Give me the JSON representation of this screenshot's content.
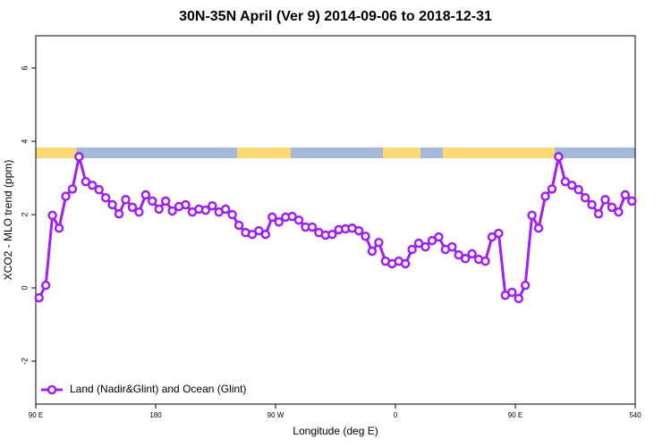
{
  "chart_data": {
    "type": "line",
    "title": "30N-35N April (Ver 9)   2014-09-06 to 2018-12-31",
    "x_label": "Longitude (deg E)",
    "y_label": "XCO2 - MLO trend (ppm)",
    "xlim": [
      90,
      540
    ],
    "xticks": [
      {
        "value": 90,
        "label": "90 E"
      },
      180,
      {
        "value": 270,
        "label": "90 W"
      },
      {
        "value": 360,
        "label": "0"
      },
      {
        "value": 450,
        "label": "90 E"
      },
      540
    ],
    "ylim": [
      -3.17,
      6.88
    ],
    "yticks": [
      -2,
      0,
      2,
      4,
      6
    ],
    "legend": "bottom-left",
    "x": [
      92.5,
      97.5,
      102.5,
      107.5,
      112.5,
      117.5,
      122.5,
      127.5,
      132.5,
      137.5,
      142.5,
      147.5,
      152.5,
      157.5,
      162.5,
      167.5,
      172.5,
      177.5,
      182.5,
      187.5,
      192.5,
      197.5,
      202.5,
      207.5,
      212.5,
      217.5,
      222.5,
      227.5,
      232.5,
      237.5,
      242.5,
      247.5,
      252.5,
      257.5,
      262.5,
      267.5,
      272.5,
      277.5,
      282.5,
      287.5,
      292.5,
      297.5,
      302.5,
      307.5,
      312.5,
      317.5,
      322.5,
      327.5,
      332.5,
      337.5,
      342.5,
      347.5,
      352.5,
      357.5,
      362.5,
      367.5,
      372.5,
      377.5,
      382.5,
      387.5,
      392.5,
      397.5,
      402.5,
      407.5,
      412.5,
      417.5,
      422.5,
      427.5,
      432.5,
      437.5,
      442.5,
      447.5,
      452.5,
      457.5,
      462.5,
      467.5,
      472.5,
      477.5,
      482.5,
      487.5,
      492.5,
      497.5,
      502.5,
      507.5,
      512.5,
      517.5,
      522.5,
      527.5,
      532.5,
      537.5
    ],
    "series": [
      {
        "name": "Land (Nadir&Glint) and Ocean (Glint)",
        "color": "#a020f0",
        "values": [
          -0.27,
          0.07,
          1.98,
          1.63,
          2.5,
          2.7,
          3.58,
          2.9,
          2.8,
          2.68,
          2.46,
          2.27,
          2.02,
          2.41,
          2.2,
          2.07,
          2.54,
          2.37,
          2.15,
          2.37,
          2.1,
          2.22,
          2.27,
          2.07,
          2.15,
          2.12,
          2.24,
          2.07,
          2.15,
          2.0,
          1.71,
          1.51,
          1.46,
          1.56,
          1.46,
          1.93,
          1.8,
          1.93,
          1.95,
          1.85,
          1.66,
          1.66,
          1.51,
          1.44,
          1.46,
          1.59,
          1.61,
          1.63,
          1.56,
          1.41,
          1.0,
          1.24,
          0.73,
          0.66,
          0.73,
          0.66,
          1.05,
          1.22,
          1.12,
          1.29,
          1.39,
          1.05,
          1.12,
          0.9,
          0.8,
          0.93,
          0.78,
          0.73,
          1.39,
          1.49,
          -0.2,
          -0.12,
          -0.29,
          0.07,
          1.98,
          1.63,
          2.5,
          2.7,
          3.58,
          2.9,
          2.8,
          2.68,
          2.46,
          2.27,
          2.02,
          2.41,
          2.2,
          2.07,
          2.54,
          2.37
        ]
      }
    ]
  }
}
